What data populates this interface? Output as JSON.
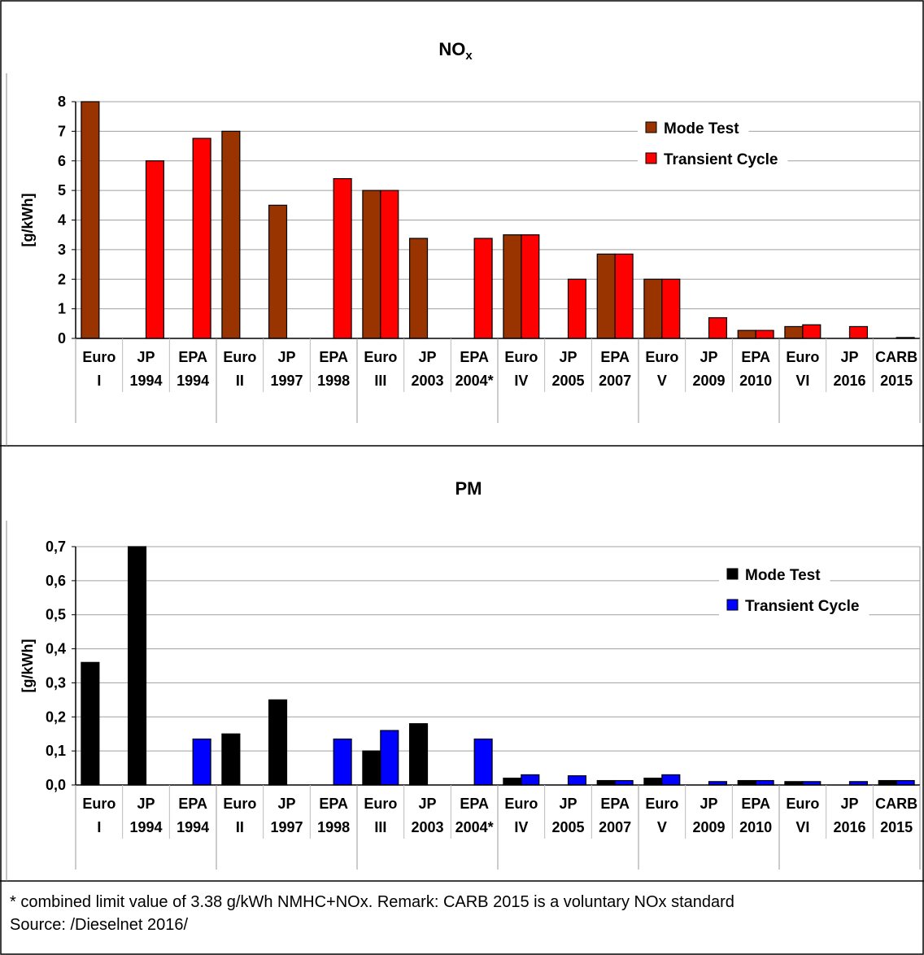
{
  "categories": [
    [
      "Euro",
      "I"
    ],
    [
      "JP",
      "1994"
    ],
    [
      "EPA",
      "1994"
    ],
    [
      "Euro",
      "II"
    ],
    [
      "JP",
      "1997"
    ],
    [
      "EPA",
      "1998"
    ],
    [
      "Euro",
      "III"
    ],
    [
      "JP",
      "2003"
    ],
    [
      "EPA",
      "2004*"
    ],
    [
      "Euro",
      "IV"
    ],
    [
      "JP",
      "2005"
    ],
    [
      "EPA",
      "2007"
    ],
    [
      "Euro",
      "V"
    ],
    [
      "JP",
      "2009"
    ],
    [
      "EPA",
      "2010"
    ],
    [
      "Euro",
      "VI"
    ],
    [
      "JP",
      "2016"
    ],
    [
      "CARB",
      "2015"
    ]
  ],
  "chart_data": [
    {
      "type": "bar",
      "title": "NOx",
      "title_main": "NO",
      "title_sub": "x",
      "ylabel": "[g/kWh]",
      "ylim": [
        0,
        8
      ],
      "yticks": [
        "0",
        "1",
        "2",
        "3",
        "4",
        "5",
        "6",
        "7",
        "8"
      ],
      "legend_position": "top-right",
      "series": [
        {
          "name": "Mode Test",
          "color": "#993300",
          "values": [
            8,
            0,
            0,
            7,
            4.5,
            0,
            5,
            3.38,
            0,
            3.5,
            0,
            2.85,
            2,
            0,
            0.27,
            0.4,
            0,
            0
          ]
        },
        {
          "name": "Transient Cycle",
          "color": "#ff0000",
          "values": [
            0,
            6,
            6.76,
            0,
            0,
            5.4,
            5,
            0,
            3.38,
            3.5,
            2,
            2.85,
            2,
            0.7,
            0.27,
            0.46,
            0.4,
            0.03
          ]
        }
      ]
    },
    {
      "type": "bar",
      "title": "PM",
      "ylabel": "[g/kWh]",
      "ylim": [
        0,
        0.7
      ],
      "yticks": [
        "0,0",
        "0,1",
        "0,2",
        "0,3",
        "0,4",
        "0,5",
        "0,6",
        "0,7"
      ],
      "legend_position": "top-right",
      "series": [
        {
          "name": "Mode Test",
          "color": "#000000",
          "values": [
            0.36,
            0.7,
            0,
            0.15,
            0.25,
            0,
            0.1,
            0.18,
            0,
            0.02,
            0,
            0.013,
            0.02,
            0,
            0.013,
            0.01,
            0,
            0.013
          ]
        },
        {
          "name": "Transient Cycle",
          "color": "#0000ff",
          "values": [
            0,
            0,
            0.135,
            0,
            0,
            0.135,
            0.16,
            0,
            0.135,
            0.03,
            0.027,
            0.013,
            0.03,
            0.01,
            0.013,
            0.01,
            0.01,
            0.013
          ]
        }
      ]
    }
  ],
  "footer": {
    "note": "* combined limit value of 3.38 g/kWh NMHC+NOx. Remark: CARB 2015 is a voluntary NOx standard",
    "source": "Source: /Dieselnet 2016/"
  }
}
